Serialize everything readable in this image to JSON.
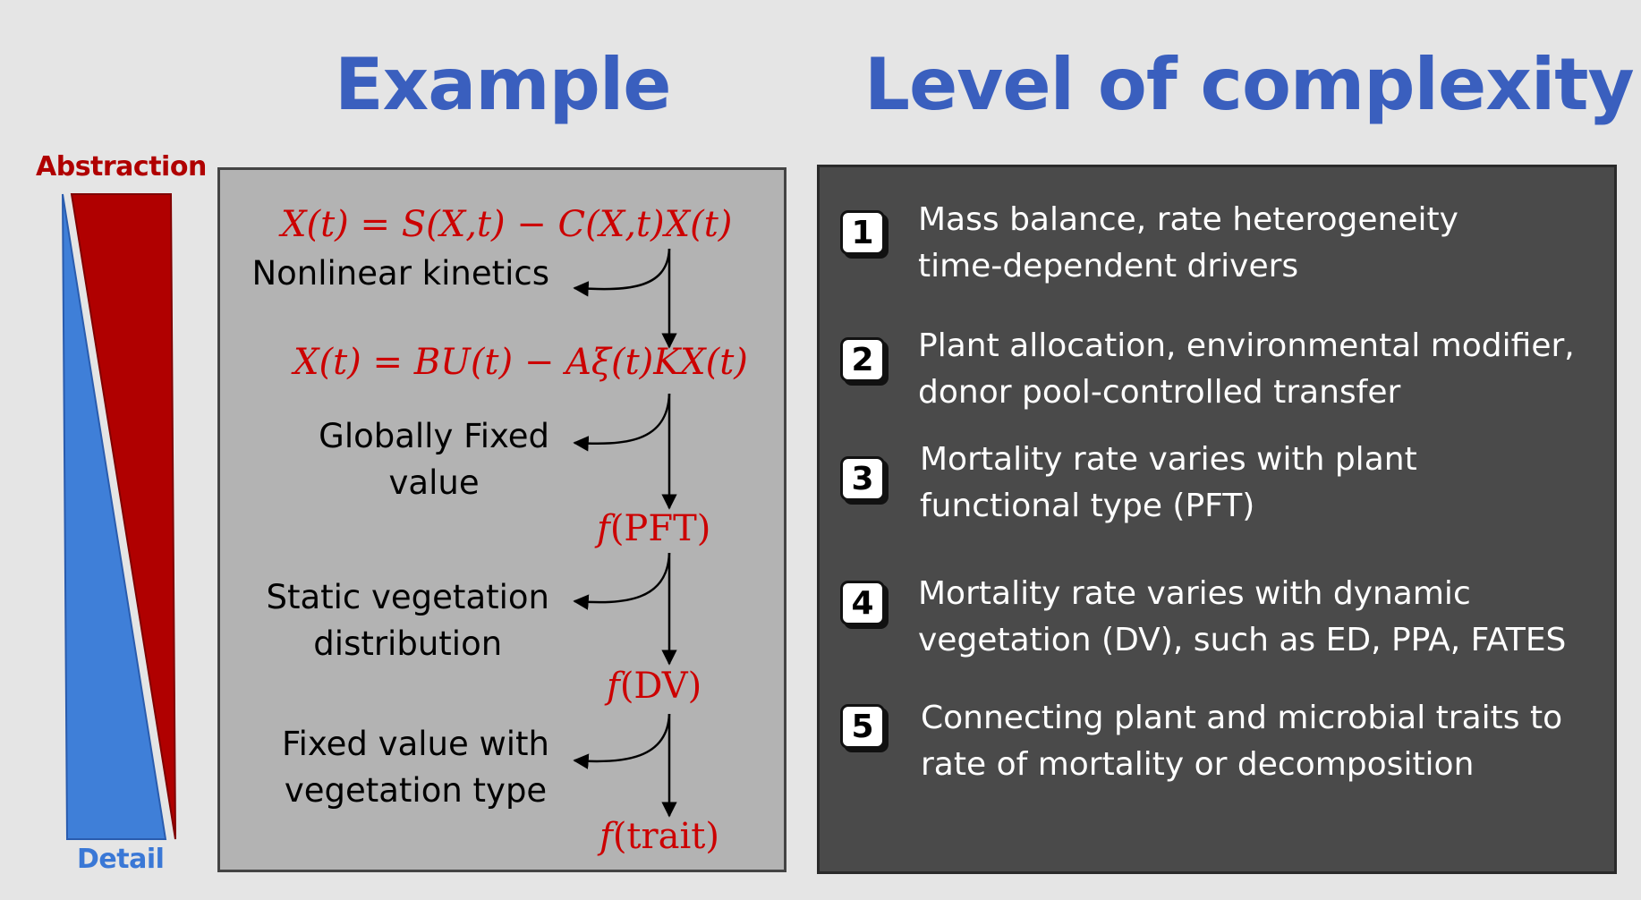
{
  "headings": {
    "example": "Example",
    "complexity": "Level of complexity"
  },
  "scale": {
    "top_label": "Abstraction",
    "bottom_label": "Detail"
  },
  "example": {
    "equation_1": "X(t) = S(X,t) − C(X,t)X(t)",
    "equation_2": "X(t) = BU(t) − Aξ(t)KX(t)",
    "steps": [
      {
        "label_lines": [
          "Nonlinear kinetics"
        ]
      },
      {
        "label_lines": [
          "Globally Fixed",
          "value"
        ]
      },
      {
        "label_lines": [
          "Static vegetation",
          "distribution"
        ]
      },
      {
        "label_lines": [
          "Fixed value with",
          "vegetation type"
        ]
      }
    ],
    "functions": [
      {
        "f": "f",
        "arg": "(PFT)"
      },
      {
        "f": "f",
        "arg": "(DV)"
      },
      {
        "f": "f",
        "arg": "(trait)"
      }
    ]
  },
  "levels": [
    {
      "number": "1",
      "lines": [
        "Mass balance, rate heterogeneity",
        "time-dependent drivers"
      ]
    },
    {
      "number": "2",
      "lines": [
        "Plant allocation, environmental modifier,",
        "donor pool-controlled transfer"
      ]
    },
    {
      "number": "3",
      "lines": [
        "Mortality rate varies with plant",
        "functional type (PFT)"
      ]
    },
    {
      "number": "4",
      "lines": [
        "Mortality rate varies with dynamic",
        "vegetation (DV), such as ED, PPA, FATES"
      ]
    },
    {
      "number": "5",
      "lines": [
        "Connecting plant and microbial traits to",
        "rate of mortality or decomposition"
      ]
    }
  ],
  "colors": {
    "heading": "#3a5fbe",
    "abstraction": "#b00000",
    "detail": "#3a78d6",
    "equation": "#cc0000"
  }
}
